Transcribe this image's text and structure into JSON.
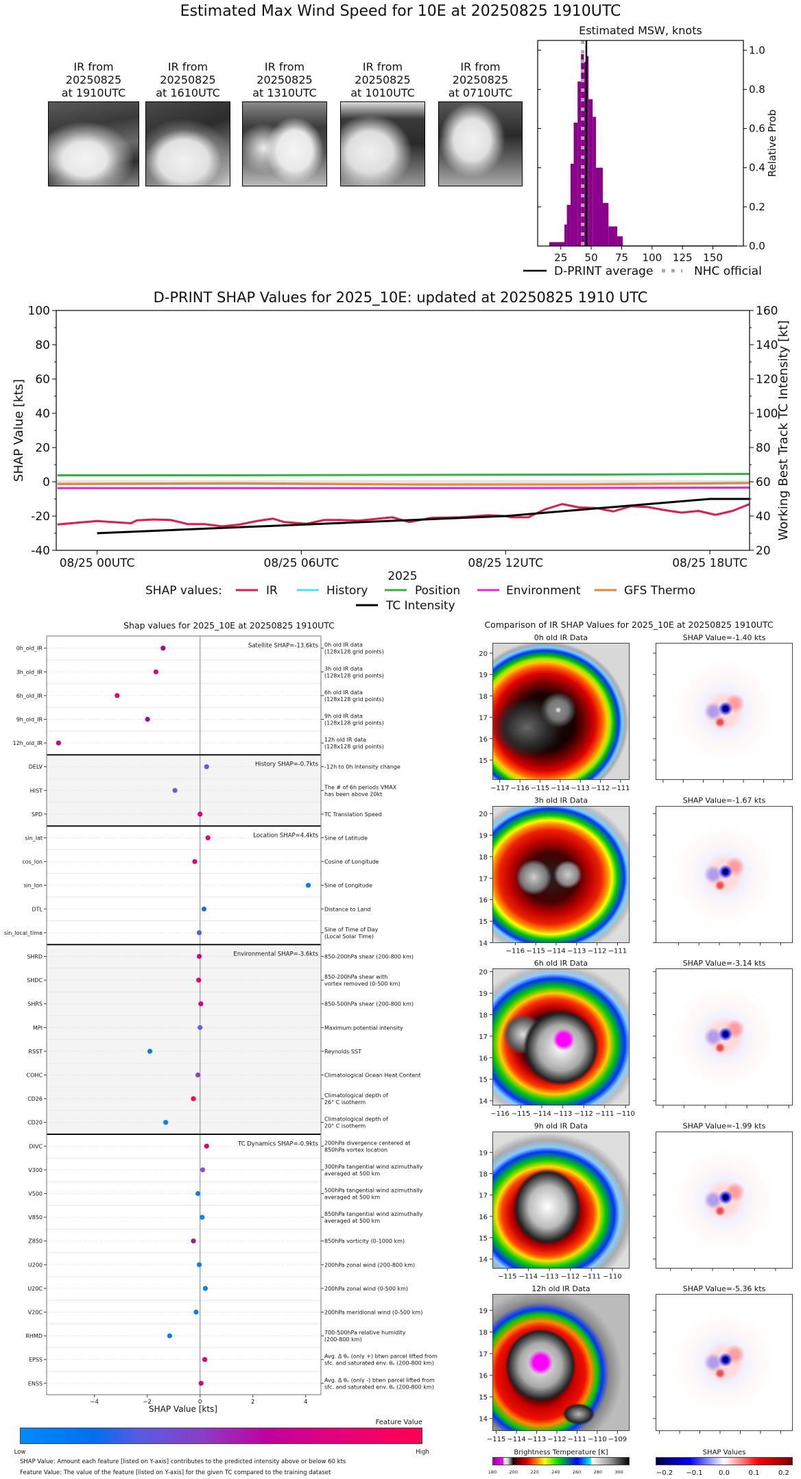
{
  "figure_title": "Estimated Max Wind Speed for 10E at 20250825 1910UTC",
  "thumbnails": [
    {
      "line1": "IR from",
      "line2": "20250825",
      "line3": "at 1910UTC"
    },
    {
      "line1": "IR from",
      "line2": "20250825",
      "line3": "at 1610UTC"
    },
    {
      "line1": "IR from",
      "line2": "20250825",
      "line3": "at 1310UTC"
    },
    {
      "line1": "IR from",
      "line2": "20250825",
      "line3": "at 1010UTC"
    },
    {
      "line1": "IR from",
      "line2": "20250825",
      "line3": "at 0710UTC"
    }
  ],
  "chart_data": [
    {
      "type": "bar",
      "title": "Estimated MSW, knots",
      "xlabel": "",
      "ylabel": "Relative Prob",
      "xlim": [
        6,
        175
      ],
      "ylim": [
        0,
        1.05
      ],
      "xticks": [
        25,
        50,
        75,
        100,
        125,
        150
      ],
      "yticks": [
        "0.0",
        "0.2",
        "0.4",
        "0.6",
        "0.8",
        "1.0"
      ],
      "bar_color": "#8b008b",
      "bins": [
        {
          "from": 15.6,
          "to": 28,
          "prob": 0.02
        },
        {
          "from": 28,
          "to": 30,
          "prob": 0.11
        },
        {
          "from": 30,
          "to": 33,
          "prob": 0.21
        },
        {
          "from": 33,
          "to": 35.6,
          "prob": 0.42
        },
        {
          "from": 35.6,
          "to": 38.8,
          "prob": 0.63
        },
        {
          "from": 38.8,
          "to": 41.6,
          "prob": 0.84
        },
        {
          "from": 41.6,
          "to": 44,
          "prob": 0.98
        },
        {
          "from": 44,
          "to": 46.3,
          "prob": 0.94
        },
        {
          "from": 46.3,
          "to": 47.8,
          "prob": 0.97
        },
        {
          "from": 47.8,
          "to": 51.2,
          "prob": 0.75
        },
        {
          "from": 51.2,
          "to": 53.9,
          "prob": 0.66
        },
        {
          "from": 53.9,
          "to": 59.5,
          "prob": 0.4
        },
        {
          "from": 59.5,
          "to": 64.2,
          "prob": 0.22
        },
        {
          "from": 64.2,
          "to": 71.4,
          "prob": 0.1
        },
        {
          "from": 71.4,
          "to": 75.9,
          "prob": 0.05
        },
        {
          "from": 75.9,
          "to": 170,
          "prob": 0.003
        }
      ],
      "vlines": [
        {
          "name": "D-PRINT average",
          "x": 46,
          "color": "#000000",
          "style": "solid"
        },
        {
          "name": "NHC official",
          "x": 43,
          "color": "#aaaaaa",
          "style": "dotted"
        }
      ],
      "legend_placement": "bottom"
    },
    {
      "type": "line",
      "title": "D-PRINT SHAP Values for 2025_10E: updated at 20250825 1910 UTC",
      "xlabel": "2025",
      "ylabel": "SHAP Value [kts]",
      "ylabel_right": "Working Best Track TC Intensity [kt]",
      "xlim": [
        "08/24 22:48",
        "08/25 19:10"
      ],
      "ylim": [
        -40,
        100
      ],
      "ylim_right": [
        20,
        160
      ],
      "xticks": [
        {
          "t": "08/25 00:00",
          "label": "08/25 00UTC"
        },
        {
          "t": "08/25 06:00",
          "label": "08/25 06UTC"
        },
        {
          "t": "08/25 12:00",
          "label": "08/25 12UTC"
        },
        {
          "t": "08/25 18:00",
          "label": "08/25 18UTC"
        }
      ],
      "yticks": [
        "-40",
        "-20",
        "0",
        "20",
        "40",
        "60",
        "80",
        "100"
      ],
      "yticks_right": [
        "20",
        "40",
        "60",
        "80",
        "100",
        "120",
        "140",
        "160"
      ],
      "zero_band": [
        -1,
        1
      ],
      "legend_title": "SHAP values:",
      "legend_placement": "bottom",
      "series": [
        {
          "name": "IR",
          "color": "#e8174a",
          "axis": "left",
          "t": [
            "08/24 22:50",
            "08/25 00:00",
            "08/25 01:00",
            "08/25 01:10",
            "08/25 01:40",
            "08/25 02:10",
            "08/25 02:40",
            "08/25 03:10",
            "08/25 03:40",
            "08/25 04:10",
            "08/25 04:40",
            "08/25 05:10",
            "08/25 05:30",
            "08/25 06:10",
            "08/25 06:40",
            "08/25 07:10",
            "08/25 07:40",
            "08/25 08:40",
            "08/25 09:10",
            "08/25 09:50",
            "08/25 10:40",
            "08/25 11:30",
            "08/25 12:00",
            "08/25 12:10",
            "08/25 12:40",
            "08/25 13:10",
            "08/25 13:40",
            "08/25 14:10",
            "08/25 14:40",
            "08/25 15:10",
            "08/25 15:40",
            "08/25 16:10",
            "08/25 16:40",
            "08/25 17:10",
            "08/25 17:40",
            "08/25 18:10",
            "08/25 18:40",
            "08/25 19:10"
          ],
          "values": [
            -24.9,
            -22.9,
            -24.2,
            -22.5,
            -22,
            -22.3,
            -24.7,
            -24.7,
            -26,
            -25,
            -23,
            -21.5,
            -23.5,
            -24.5,
            -22.3,
            -22.3,
            -22.7,
            -20.7,
            -23.5,
            -21,
            -20.7,
            -19.5,
            -20,
            -20.7,
            -20.7,
            -16,
            -13,
            -15,
            -15.3,
            -17.3,
            -14.3,
            -14.7,
            -16.5,
            -18,
            -17,
            -19.3,
            -17,
            -13
          ]
        },
        {
          "name": "History",
          "color": "#40e8f0",
          "axis": "left",
          "t": [
            "08/24 22:50",
            "08/25 04:10",
            "08/25 09:10",
            "08/25 14:10",
            "08/25 19:10"
          ],
          "values": [
            -1.5,
            -1.3,
            -1.5,
            -1.5,
            -0.5
          ]
        },
        {
          "name": "Position",
          "color": "#2db83d",
          "axis": "left",
          "t": [
            "08/24 22:50",
            "08/25 04:10",
            "08/25 09:10",
            "08/25 14:10",
            "08/25 19:10"
          ],
          "values": [
            3.8,
            3.8,
            4.0,
            4.2,
            4.6
          ]
        },
        {
          "name": "Environment",
          "color": "#f020e0",
          "axis": "left",
          "t": [
            "08/24 22:50",
            "08/25 04:10",
            "08/25 09:10",
            "08/25 14:10",
            "08/25 19:10"
          ],
          "values": [
            -3.7,
            -3.7,
            -3.7,
            -3.6,
            -3.4
          ]
        },
        {
          "name": "GFS Thermo",
          "color": "#f5822a",
          "axis": "left",
          "t": [
            "08/24 22:50",
            "08/25 04:10",
            "08/25 09:10",
            "08/25 14:10",
            "08/25 19:10"
          ],
          "values": [
            -1.2,
            -0.8,
            -1.6,
            -1.6,
            -0.8
          ]
        },
        {
          "name": "TC Intensity",
          "color": "#000000",
          "axis": "right",
          "t": [
            "08/25 00:00",
            "08/25 12:00",
            "08/25 18:00",
            "08/25 19:10"
          ],
          "values": [
            30,
            40,
            50,
            50
          ]
        }
      ]
    },
    {
      "type": "scatter",
      "title": "Shap values for 2025_10E at 20250825 1910UTC",
      "xlabel": "SHAP Value [kts]",
      "xlim": [
        -5.8,
        4.6
      ],
      "xticks": [
        "−4",
        "−2",
        "0",
        "2",
        "4"
      ],
      "groups": [
        {
          "label": "Satellite SHAP=-13.6kts",
          "first": 0,
          "last": 4,
          "shaded": false
        },
        {
          "label": "History SHAP=-0.7kts",
          "first": 5,
          "last": 7,
          "shaded": true
        },
        {
          "label": "Location SHAP=4.4kts",
          "first": 8,
          "last": 12,
          "shaded": false
        },
        {
          "label": "Environmental SHAP=-3.6kts",
          "first": 13,
          "last": 20,
          "shaded": true
        },
        {
          "label": "TC Dynamics SHAP=-0.9kts",
          "first": 21,
          "last": 31,
          "shaded": false
        }
      ],
      "features": [
        {
          "name": "0h_old_IR",
          "shap": -1.4,
          "color": "#b0009e",
          "desc": [
            "0h old IR data",
            "(128x128 grid points)"
          ]
        },
        {
          "name": "3h_old_IR",
          "shap": -1.67,
          "color": "#e8006a",
          "desc": [
            "3h old IR data",
            "(128x128 grid points)"
          ]
        },
        {
          "name": "6h_old_IR",
          "shap": -3.14,
          "color": "#f0005a",
          "desc": [
            "6h old IR data",
            "(128x128 grid points)"
          ]
        },
        {
          "name": "9h_old_IR",
          "shap": -1.99,
          "color": "#b000a0",
          "desc": [
            "9h old IR data",
            "(128x128 grid points)"
          ]
        },
        {
          "name": "12h_old_IR",
          "shap": -5.36,
          "color": "#c8008e",
          "desc": [
            "12h old IR data",
            "(128x128 grid points)"
          ]
        },
        {
          "name": "DELV",
          "shap": 0.25,
          "color": "#5a5ee0",
          "desc": [
            "-12h to 0h Intensity change"
          ]
        },
        {
          "name": "HIST",
          "shap": -0.95,
          "color": "#6a5ad8",
          "desc": [
            "The # of 6h periods VMAX",
            "has been above 20kt"
          ]
        },
        {
          "name": "SPD",
          "shap": 0.0,
          "color": "#e0007a",
          "desc": [
            "TC Translation Speed"
          ]
        },
        {
          "name": "sin_lat",
          "shap": 0.3,
          "color": "#ee0066",
          "desc": [
            "Sine of Latitude"
          ]
        },
        {
          "name": "cos_lon",
          "shap": -0.2,
          "color": "#e2007a",
          "desc": [
            "Cosine of Longitude"
          ]
        },
        {
          "name": "sin_lon",
          "shap": 4.1,
          "color": "#0080ff",
          "desc": [
            "Sine of Longitude"
          ]
        },
        {
          "name": "DTL",
          "shap": 0.15,
          "color": "#1e6ef0",
          "desc": [
            "Distance to Land"
          ]
        },
        {
          "name": "sin_local_time",
          "shap": -0.03,
          "color": "#5060e8",
          "desc": [
            "Sine of Time of Day",
            "(Local Solar Time)"
          ]
        },
        {
          "name": "SHRD",
          "shap": -0.03,
          "color": "#d0008a",
          "desc": [
            "850-200hPa shear (200-800 km)"
          ]
        },
        {
          "name": "SHDC",
          "shap": -0.05,
          "color": "#e6006e",
          "desc": [
            "850-200hPa shear with",
            "vortex removed (0-500 km)"
          ]
        },
        {
          "name": "SHRS",
          "shap": 0.03,
          "color": "#d0008c",
          "desc": [
            "850-500hPa shear (200-800 km)"
          ]
        },
        {
          "name": "MPI",
          "shap": 0.0,
          "color": "#6060e0",
          "desc": [
            "Maximum potential intensity"
          ]
        },
        {
          "name": "RSST",
          "shap": -1.9,
          "color": "#0080ff",
          "desc": [
            "Reynolds SST"
          ]
        },
        {
          "name": "COHC",
          "shap": -0.08,
          "color": "#9040c8",
          "desc": [
            "Climatological Ocean Heat Content"
          ]
        },
        {
          "name": "CD26",
          "shap": -0.25,
          "color": "#ff0050",
          "desc": [
            "Climatological depth of",
            "26° C isotherm"
          ]
        },
        {
          "name": "CD20",
          "shap": -1.3,
          "color": "#0080ff",
          "desc": [
            "Climatological depth of",
            "20° C isotherm"
          ]
        },
        {
          "name": "DIVC",
          "shap": 0.25,
          "color": "#e00070",
          "desc": [
            "200hPa divergence centered at",
            "850hPa vortex location"
          ]
        },
        {
          "name": "V300",
          "shap": 0.1,
          "color": "#8050d8",
          "desc": [
            "300hPa tangential wind azimuthally",
            "averaged at 500 km"
          ]
        },
        {
          "name": "V500",
          "shap": -0.08,
          "color": "#0080ff",
          "desc": [
            "500hPa tangential wind azimuthally",
            "averaged at 500 km"
          ]
        },
        {
          "name": "V850",
          "shap": 0.08,
          "color": "#0088ff",
          "desc": [
            "850hPa tangential wind azimuthally",
            "averaged at 500 km"
          ]
        },
        {
          "name": "Z850",
          "shap": -0.25,
          "color": "#b010a0",
          "desc": [
            "850hPa vorticity (0-1000 km)"
          ]
        },
        {
          "name": "U200",
          "shap": -0.03,
          "color": "#0080ff",
          "desc": [
            "200hPa zonal wind (200-800 km)"
          ]
        },
        {
          "name": "U20C",
          "shap": 0.2,
          "color": "#0080ff",
          "desc": [
            "200hPa zonal wind (0-500 km)"
          ]
        },
        {
          "name": "V20C",
          "shap": -0.15,
          "color": "#0080ff",
          "desc": [
            "200hPa meridional wind (0-500 km)"
          ]
        },
        {
          "name": "RHMD",
          "shap": -1.15,
          "color": "#0080ff",
          "desc": [
            "700-500hPa relative humidity",
            "(200-800 km)"
          ]
        },
        {
          "name": "EPSS",
          "shap": 0.18,
          "color": "#e8006c",
          "desc": [
            "Avg. Δ θₑ (only +) btwn parcel lifted from",
            "sfc. and saturated env. θₑ (200-800 km)"
          ]
        },
        {
          "name": "ENSS",
          "shap": 0.04,
          "color": "#d8007c",
          "desc": [
            "Avg. Δ θₑ (only -) btwn parcel lifted from",
            "sfc. and saturated env. θₑ (200-800 km)"
          ]
        }
      ],
      "colorbar": {
        "label": "Feature Value",
        "low": "Low",
        "high": "High"
      },
      "footnotes": [
        "SHAP Value: Amount each feature [listed on Y-axis] contributes to the predicted intensity above or below 60 kts",
        "Feature Value: The value of the feature [listed on Y-axis] for the given TC compared to the training dataset"
      ]
    },
    {
      "type": "heatmap",
      "title": "Comparison of IR SHAP Values for 2025_10E at 20250825 1910UTC",
      "panels": [
        {
          "ir_title": "0h old IR Data",
          "shap_title": "SHAP Value=-1.40 kts",
          "lat_range": [
            14.07,
            20.48
          ],
          "lon_range": [
            -117.37,
            -110.55
          ],
          "lat_ticks": [
            15,
            16,
            17,
            18,
            19,
            20
          ],
          "lon_ticks": [
            -117,
            -116,
            -115,
            -114,
            -113,
            -112,
            -111
          ]
        },
        {
          "ir_title": "3h old IR Data",
          "shap_title": "SHAP Value=-1.67 kts",
          "lat_range": [
            14.0,
            20.37
          ],
          "lon_range": [
            -117.12,
            -110.41
          ],
          "lat_ticks": [
            14,
            15,
            16,
            17,
            18,
            19,
            20
          ],
          "lon_ticks": [
            -116,
            -115,
            -114,
            -113,
            -112,
            -111
          ]
        },
        {
          "ir_title": "6h old IR Data",
          "shap_title": "SHAP Value=-3.14 kts",
          "lat_range": [
            13.78,
            20.15
          ],
          "lon_range": [
            -116.36,
            -109.81
          ],
          "lat_ticks": [
            14,
            15,
            16,
            17,
            18,
            19,
            20
          ],
          "lon_ticks": [
            -116,
            -115,
            -114,
            -113,
            -112,
            -111,
            -110
          ]
        },
        {
          "ir_title": "9h old IR Data",
          "shap_title": "SHAP Value=-1.99 kts",
          "lat_range": [
            13.57,
            19.99
          ],
          "lon_range": [
            -115.71,
            -109.18
          ],
          "lat_ticks": [
            14,
            15,
            16,
            17,
            18,
            19
          ],
          "lon_ticks": [
            -115,
            -114,
            -113,
            -112,
            -111,
            -110
          ]
        },
        {
          "ir_title": "12h old IR Data",
          "shap_title": "SHAP Value=-5.36 kts",
          "lat_range": [
            13.42,
            19.76
          ],
          "lon_range": [
            -115.19,
            -108.4
          ],
          "lat_ticks": [
            14,
            15,
            16,
            17,
            18,
            19
          ],
          "lon_ticks": [
            -115,
            -114,
            -113,
            -112,
            -111,
            -110,
            -109
          ]
        }
      ],
      "bt_colorbar": {
        "label": "Brightness Temperature [K]",
        "range": [
          180,
          310
        ],
        "ticks": [
          "180",
          "200",
          "220",
          "240",
          "260",
          "280",
          "300"
        ]
      },
      "shap_colorbar": {
        "label": "SHAP Values",
        "range": [
          -0.23,
          0.23
        ],
        "ticks": [
          "−0.2",
          "−0.1",
          "0.0",
          "0.1",
          "0.2"
        ]
      }
    }
  ]
}
